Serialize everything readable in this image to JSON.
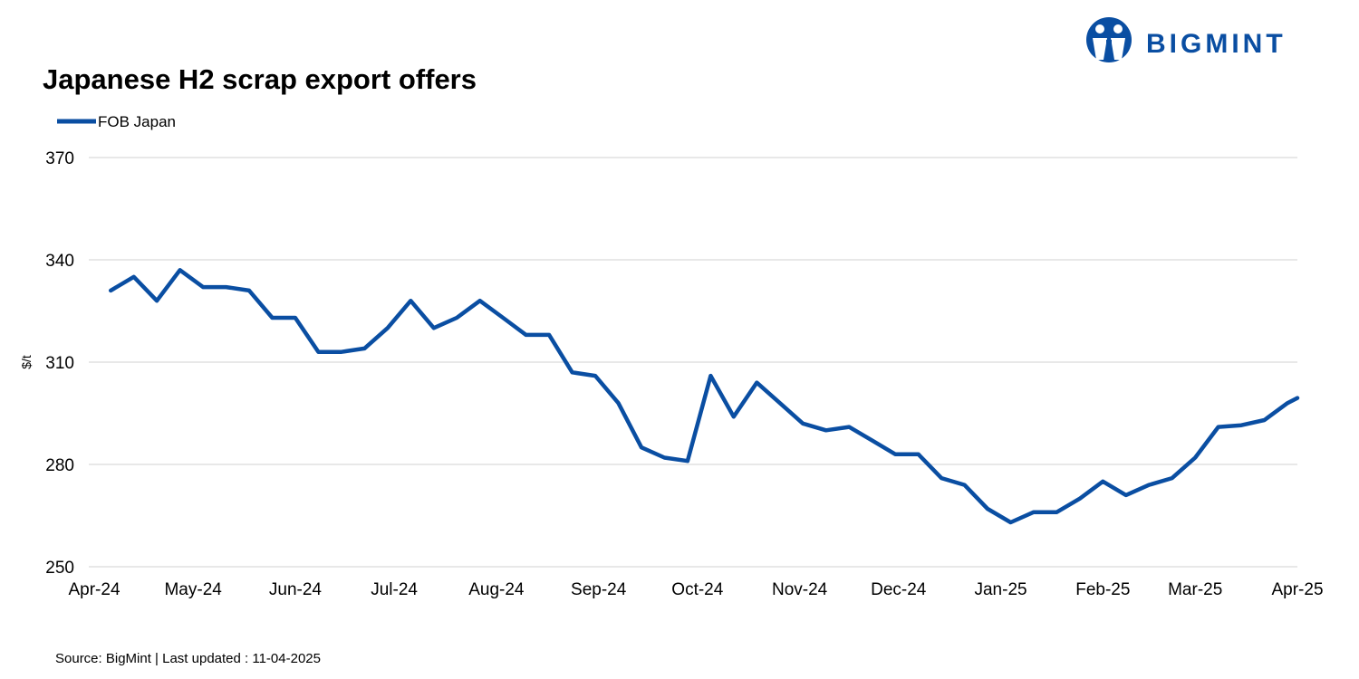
{
  "brand": {
    "name": "BIGMINT",
    "color": "#0a4ea2"
  },
  "footer": {
    "source": "Source: BigMint  | Last updated : 11-04-2025"
  },
  "chart_data": {
    "type": "line",
    "title": "Japanese H2 scrap export offers",
    "xlabel": "",
    "ylabel": "$/t",
    "ylim": [
      250,
      370
    ],
    "yticks": [
      250,
      280,
      310,
      340,
      370
    ],
    "grid": true,
    "legend_position": "top-left",
    "x_tick_labels": [
      "Apr-24",
      "May-24",
      "Jun-24",
      "Jul-24",
      "Aug-24",
      "Sep-24",
      "Oct-24",
      "Nov-24",
      "Dec-24",
      "Jan-25",
      "Feb-25",
      "Mar-25",
      "Apr-25"
    ],
    "x": [
      "2024-04-06",
      "2024-04-13",
      "2024-04-20",
      "2024-04-27",
      "2024-05-04",
      "2024-05-11",
      "2024-05-18",
      "2024-05-25",
      "2024-06-01",
      "2024-06-08",
      "2024-06-15",
      "2024-06-22",
      "2024-06-29",
      "2024-07-06",
      "2024-07-13",
      "2024-07-20",
      "2024-07-27",
      "2024-08-03",
      "2024-08-10",
      "2024-08-17",
      "2024-08-24",
      "2024-08-31",
      "2024-09-07",
      "2024-09-14",
      "2024-09-21",
      "2024-09-28",
      "2024-10-05",
      "2024-10-12",
      "2024-10-19",
      "2024-10-26",
      "2024-11-02",
      "2024-11-09",
      "2024-11-16",
      "2024-11-23",
      "2024-11-30",
      "2024-12-07",
      "2024-12-14",
      "2024-12-21",
      "2024-12-28",
      "2025-01-04",
      "2025-01-11",
      "2025-01-18",
      "2025-01-25",
      "2025-02-01",
      "2025-02-08",
      "2025-02-15",
      "2025-02-22",
      "2025-03-01",
      "2025-03-08",
      "2025-03-15",
      "2025-03-22",
      "2025-03-29",
      "2025-04-05"
    ],
    "series": [
      {
        "name": "FOB Japan",
        "color": "#0a4ea2",
        "values": [
          331,
          335,
          328,
          337,
          332,
          332,
          331,
          323,
          323,
          313,
          313,
          314,
          320,
          328,
          320,
          323,
          328,
          323,
          318,
          318,
          307,
          306,
          298,
          285,
          282,
          281,
          306,
          294,
          304,
          298,
          292,
          290,
          291,
          287,
          283,
          283,
          276,
          274,
          267,
          263,
          266,
          266,
          270,
          275,
          271,
          274,
          276,
          282,
          291,
          291.5,
          293,
          298,
          299.5
        ]
      }
    ]
  }
}
